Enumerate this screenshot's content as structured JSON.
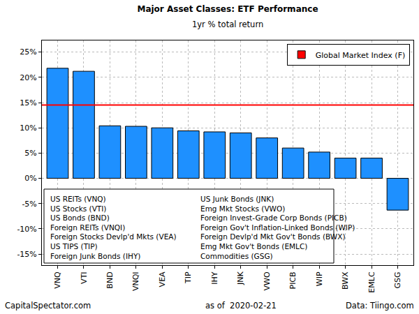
{
  "chart_data": {
    "type": "bar",
    "title": "Major Asset Classes: ETF Performance",
    "subtitle": "1yr % total return",
    "categories": [
      "VNQ",
      "VTI",
      "BND",
      "VNQI",
      "VEA",
      "TIP",
      "IHY",
      "JNK",
      "VWO",
      "PICB",
      "WIP",
      "BWX",
      "EMLC",
      "GSG"
    ],
    "values": [
      21.8,
      21.2,
      10.4,
      10.3,
      10.0,
      9.4,
      9.2,
      9.0,
      8.0,
      6.0,
      5.2,
      4.0,
      4.0,
      -6.3
    ],
    "color": "#1E90FF",
    "reference_lines": [
      {
        "name": "Global Market Index (F)",
        "value": 14.5,
        "color": "#FF0000"
      }
    ],
    "descriptions": [
      "US REITs (VNQ)",
      "US Stocks (VTI)",
      "US Bonds (BND)",
      "Foreign REITs (VNQI)",
      "Foreign Stocks Devlp'd Mkts (VEA)",
      "US TIPS (TIP)",
      "Foreign Junk Bonds (IHY)",
      "US Junk Bonds (JNK)",
      "Emg Mkt Stocks (VWO)",
      "Foreign Invest-Grade Corp Bonds (PICB)",
      "Foreign Gov't Inflation-Linked Bonds (WIP)",
      "Foreign Devlp'd Mkt Gov't Bonds (BWX)",
      "Emg Mkt Gov't Bonds (EMLC)",
      "Commodities (GSG)"
    ],
    "footer": [
      "CapitalSpectator.com",
      "as of  2020-02-21",
      "Data: Tiingo.com"
    ],
    "ylim": [
      -17.2,
      27.3
    ],
    "yticks": [
      {
        "value": -15,
        "label": "-15%"
      },
      {
        "value": -10,
        "label": "-10%"
      },
      {
        "value": -5,
        "label": "-5%"
      },
      {
        "value": 0,
        "label": "0%"
      },
      {
        "value": 5,
        "label": "5%"
      },
      {
        "value": 10,
        "label": "10%"
      },
      {
        "value": 15,
        "label": "15%"
      },
      {
        "value": 20,
        "label": "20%"
      },
      {
        "value": 25,
        "label": "25%"
      }
    ],
    "grid": true,
    "legend": "top right"
  }
}
